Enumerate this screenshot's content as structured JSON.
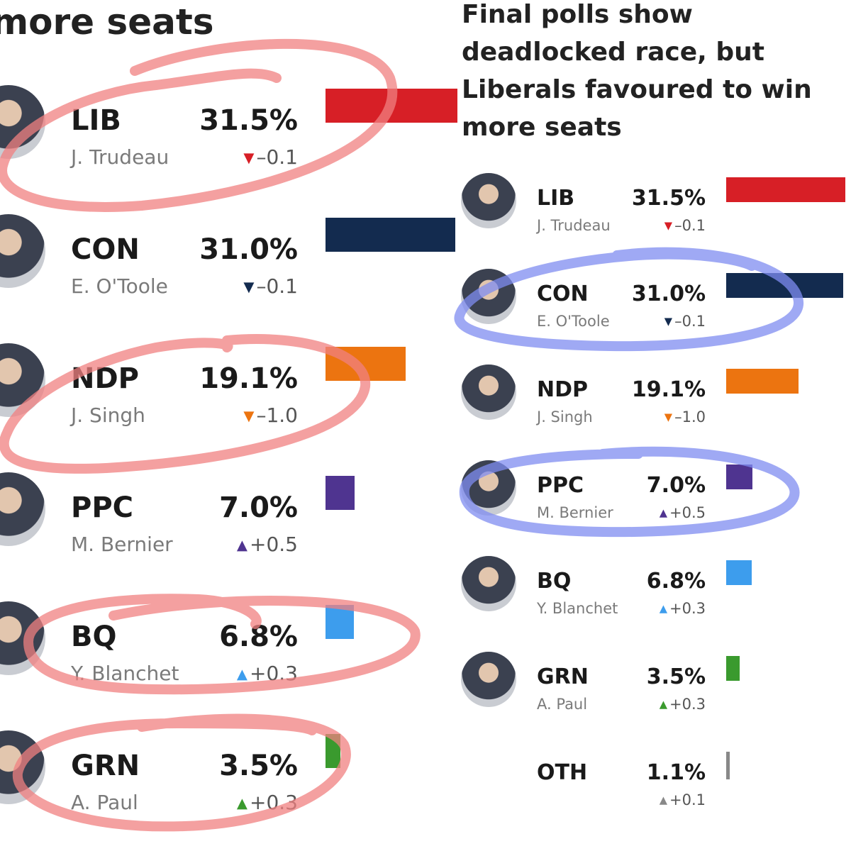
{
  "left_panel": {
    "title_fragment": "more seats"
  },
  "right_panel": {
    "title_lines": [
      "Final polls show",
      "deadlocked race, but",
      "Liberals favoured to win",
      "more seats"
    ]
  },
  "chart_data": {
    "type": "bar",
    "title": "Final polls show deadlocked race, but Liberals favoured to win more seats",
    "categories": [
      "LIB",
      "CON",
      "NDP",
      "PPC",
      "BQ",
      "GRN",
      "OTH"
    ],
    "leaders": [
      "J. Trudeau",
      "E. O'Toole",
      "J. Singh",
      "M. Bernier",
      "Y. Blanchet",
      "A. Paul",
      ""
    ],
    "values": [
      31.5,
      31.0,
      19.1,
      7.0,
      6.8,
      3.5,
      1.1
    ],
    "value_labels": [
      "31.5%",
      "31.0%",
      "19.1%",
      "7.0%",
      "6.8%",
      "3.5%",
      "1.1%"
    ],
    "changes": [
      -0.1,
      -0.1,
      -1.0,
      0.5,
      0.3,
      0.3,
      0.1
    ],
    "change_labels": [
      "–0.1",
      "–0.1",
      "–1.0",
      "+0.5",
      "+0.3",
      "+0.3",
      "+0.1"
    ],
    "colors": [
      "#d71f26",
      "#132b4f",
      "#ec7410",
      "#4f3490",
      "#3d9ded",
      "#3a9a2e",
      "#888888"
    ],
    "annotations": {
      "left_red_circled": [
        "LIB",
        "NDP",
        "BQ",
        "GRN"
      ],
      "right_blue_circled": [
        "CON",
        "PPC"
      ],
      "red_color": "#f08080",
      "blue_color": "#7f8cf0"
    }
  }
}
